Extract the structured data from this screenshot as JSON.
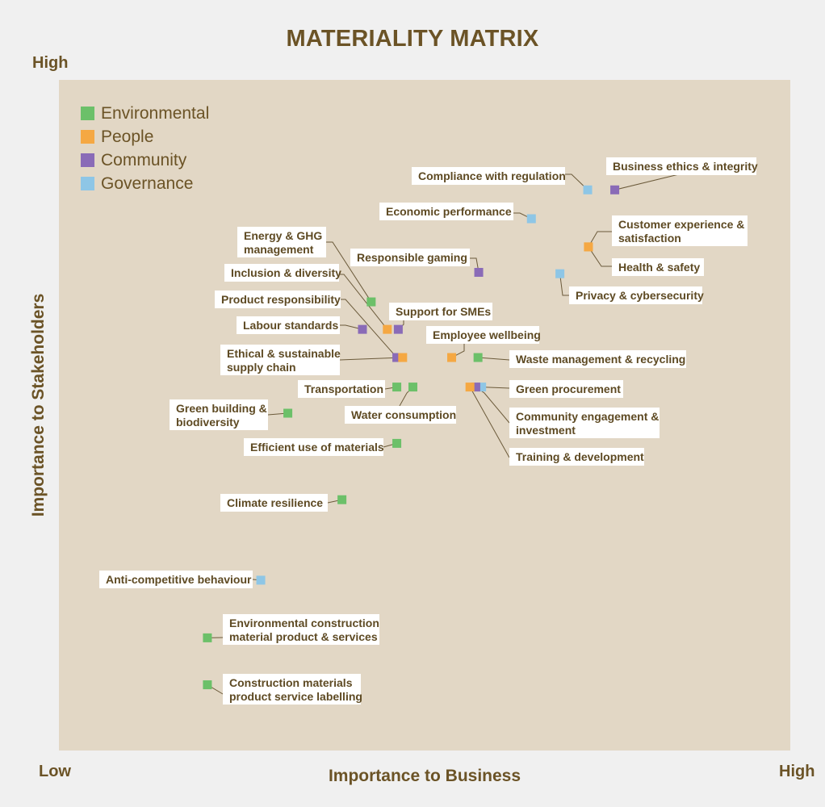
{
  "chart_data": {
    "type": "scatter",
    "title": "MATERIALITY MATRIX",
    "xlabel": "Importance to Business",
    "ylabel": "Importance to Stakeholders",
    "x_low_label": "Low",
    "x_high_label": "High",
    "y_high_label": "High",
    "xlim": [
      0,
      100
    ],
    "ylim": [
      0,
      100
    ],
    "grid": false,
    "legend_position": "top-left",
    "categories": [
      {
        "name": "Environmental",
        "color": "#6cc069"
      },
      {
        "name": "People",
        "color": "#f5a843"
      },
      {
        "name": "Community",
        "color": "#8a6bb7"
      },
      {
        "name": "Governance",
        "color": "#8ec6e6"
      }
    ],
    "points": [
      {
        "id": "business-ethics",
        "label": [
          "Business ethics & integrity"
        ],
        "category": "Community",
        "x": 76.0,
        "y": 83.6
      },
      {
        "id": "compliance",
        "label": [
          "Compliance with regulation"
        ],
        "category": "Governance",
        "x": 72.3,
        "y": 83.6
      },
      {
        "id": "economic-performance",
        "label": [
          "Economic performance"
        ],
        "category": "Governance",
        "x": 64.6,
        "y": 79.3
      },
      {
        "id": "customer-experience",
        "label": [
          "Customer experience &",
          "satisfaction"
        ],
        "category": "People",
        "x": 72.4,
        "y": 75.1
      },
      {
        "id": "health-safety",
        "label": [
          "Health & safety"
        ],
        "category": "People",
        "x": 72.4,
        "y": 75.1
      },
      {
        "id": "privacy",
        "label": [
          "Privacy & cybersecurity"
        ],
        "category": "Governance",
        "x": 68.5,
        "y": 71.1
      },
      {
        "id": "responsible-gaming",
        "label": [
          "Responsible gaming"
        ],
        "category": "Community",
        "x": 57.4,
        "y": 71.3
      },
      {
        "id": "energy-ghg",
        "label": [
          "Energy & GHG",
          "management"
        ],
        "category": "Environmental",
        "x": 42.7,
        "y": 66.9
      },
      {
        "id": "inclusion",
        "label": [
          "Inclusion & diversity"
        ],
        "category": "People",
        "x": 44.9,
        "y": 62.8
      },
      {
        "id": "support-smes",
        "label": [
          "Support for SMEs"
        ],
        "category": "Community",
        "x": 46.4,
        "y": 62.8
      },
      {
        "id": "labour-standards",
        "label": [
          "Labour standards"
        ],
        "category": "Community",
        "x": 41.5,
        "y": 62.8
      },
      {
        "id": "product-responsibility",
        "label": [
          "Product responsibility"
        ],
        "category": "Community",
        "x": 46.2,
        "y": 58.6
      },
      {
        "id": "ethical-supply",
        "label": [
          "Ethical & sustainable",
          "supply chain"
        ],
        "category": "People",
        "x": 47.0,
        "y": 58.6
      },
      {
        "id": "employee-wellbeing",
        "label": [
          "Employee wellbeing"
        ],
        "category": "People",
        "x": 53.7,
        "y": 58.6
      },
      {
        "id": "waste",
        "label": [
          "Waste management & recycling"
        ],
        "category": "Environmental",
        "x": 57.3,
        "y": 58.6
      },
      {
        "id": "transportation",
        "label": [
          "Transportation"
        ],
        "category": "Environmental",
        "x": 46.2,
        "y": 54.2
      },
      {
        "id": "water",
        "label": [
          "Water consumption"
        ],
        "category": "Environmental",
        "x": 48.4,
        "y": 54.2
      },
      {
        "id": "green-procurement",
        "label": [
          "Green procurement"
        ],
        "category": "Governance",
        "x": 57.8,
        "y": 54.2
      },
      {
        "id": "community-engagement",
        "label": [
          "Community engagement &",
          "investment"
        ],
        "category": "Community",
        "x": 57.0,
        "y": 54.2
      },
      {
        "id": "training",
        "label": [
          "Training & development"
        ],
        "category": "People",
        "x": 56.2,
        "y": 54.2
      },
      {
        "id": "green-building",
        "label": [
          "Green building &",
          "biodiversity"
        ],
        "category": "Environmental",
        "x": 31.3,
        "y": 50.3
      },
      {
        "id": "efficient-materials",
        "label": [
          "Efficient use of materials"
        ],
        "category": "Environmental",
        "x": 46.2,
        "y": 45.8
      },
      {
        "id": "climate-resilience",
        "label": [
          "Climate resilience"
        ],
        "category": "Environmental",
        "x": 38.7,
        "y": 37.4
      },
      {
        "id": "anti-competitive",
        "label": [
          "Anti-competitive behaviour"
        ],
        "category": "Governance",
        "x": 27.6,
        "y": 25.4
      },
      {
        "id": "env-construction",
        "label": [
          "Environmental construction",
          "material product & services"
        ],
        "category": "Environmental",
        "x": 20.3,
        "y": 16.8
      },
      {
        "id": "construction-labelling",
        "label": [
          "Construction materials",
          "product service labelling"
        ],
        "category": "Environmental",
        "x": 20.3,
        "y": 9.8
      }
    ]
  }
}
